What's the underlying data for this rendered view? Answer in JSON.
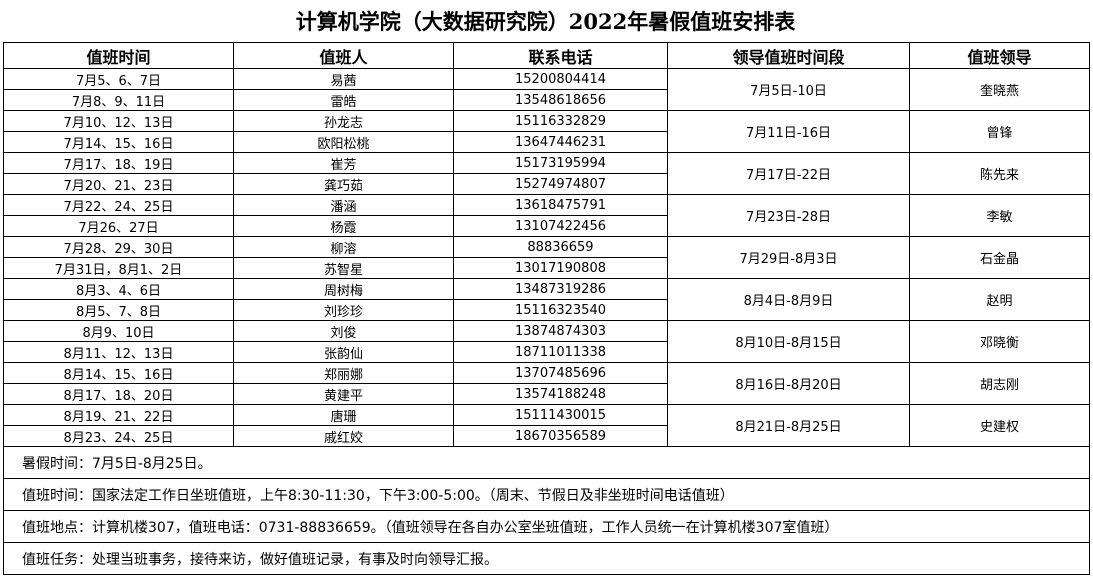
{
  "title": "计算机学院（大数据研究院）2022年暑假值班安排表",
  "table": {
    "header": [
      "值班时间",
      "值班人",
      "联系电话",
      "领导值班时间段",
      "值班领导"
    ],
    "rows": [
      [
        "7月5、6、7日",
        "易茜",
        "15200804414"
      ],
      [
        "7月8、9、11日",
        "雷皓",
        "13548618656"
      ],
      [
        "7月10、12、13日",
        "孙龙志",
        "15116332829"
      ],
      [
        "7月14、15、16日",
        "欧阳松桃",
        "13647446231"
      ],
      [
        "7月17、18、19日",
        "崔芳",
        "15173195994"
      ],
      [
        "7月20、21、23日",
        "龚巧茹",
        "15274974807"
      ],
      [
        "7月22、24、25日",
        "潘涵",
        "13618475791"
      ],
      [
        "7月26、27日",
        "杨霞",
        "13107422456"
      ],
      [
        "7月28、29、30日",
        "柳溶",
        "88836659"
      ],
      [
        "7月31日，8月1、2日",
        "苏智星",
        "13017190808"
      ],
      [
        "8月3、4、6日",
        "周树梅",
        "13487319286"
      ],
      [
        "8月5、7、8日",
        "刘珍珍",
        "15116323540"
      ],
      [
        "8月9、10日",
        "刘俊",
        "13874874303"
      ],
      [
        "8月11、12、13日",
        "张韵仙",
        "18711011338"
      ],
      [
        "8月14、15、16日",
        "郑丽娜",
        "13707485696"
      ],
      [
        "8月17、18、20日",
        "黄建平",
        "13574188248"
      ],
      [
        "8月19、21、22日",
        "唐珊",
        "15111430015"
      ],
      [
        "8月23、24、25日",
        "戚红姣",
        "18670356589"
      ]
    ],
    "leaders": [
      [
        "7月5日-10日",
        "奎晓燕"
      ],
      [
        "7月11日-16日",
        "曾锋"
      ],
      [
        "7月17日-22日",
        "陈先来"
      ],
      [
        "7月23日-28日",
        "李敏"
      ],
      [
        "7月29日-8月3日",
        "石金晶"
      ],
      [
        "8月4日-8月9日",
        "赵明"
      ],
      [
        "8月10日-8月15日",
        "邓晓衡"
      ],
      [
        "8月16日-8月20日",
        "胡志刚"
      ],
      [
        "8月21日-8月25日",
        "史建权"
      ]
    ]
  },
  "notes": [
    "暑假时间：7月5日-8月25日。",
    "值班时间：国家法定工作日坐班值班，上午8:30-11:30，下午3:00-5:00。（周末、节假日及非坐班时间电话值班）",
    "值班地点：计算机楼307，值班电话：0731-88836659。（值班领导在各自办公室坐班值班，工作人员统一在计算机楼307室值班）",
    "值班任务：处理当班事务，接待来访，做好值班记录，有事及时向领导汇报。"
  ]
}
